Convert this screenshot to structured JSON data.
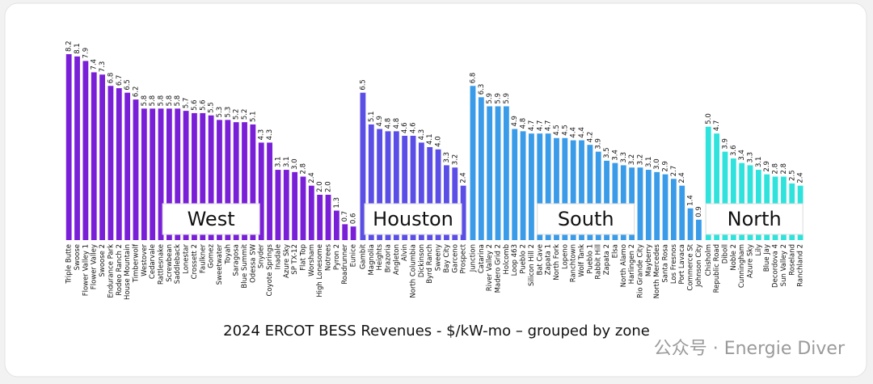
{
  "chart_data": {
    "type": "bar",
    "title": "2024 ERCOT BESS Revenues - $/kW-mo – grouped by zone",
    "watermark": "公众号 · Energie Diver",
    "series": [
      {
        "name": "West",
        "color": "#7a1fd8",
        "categories": [
          "Triple Butte",
          "Swoose",
          "Flower Valley 1",
          "Flower Valley",
          "Swoose 2",
          "Endurance Park",
          "Rodeo Ranch 2",
          "House Mountain",
          "Timberwolf",
          "Westover",
          "Cedarvale",
          "Rattlesnake",
          "Screwbean",
          "Saddleback",
          "Lonestar",
          "Crossett 2",
          "Faulkner",
          "Gomez",
          "Sweetwater",
          "Toyah",
          "Saragosa",
          "Blue Summit",
          "Odessa SW",
          "Snyder",
          "Coyote Springs",
          "Inadale",
          "Azure Sky",
          "SP TX-12",
          "Flat Top",
          "Worsham",
          "High Lonesome",
          "Notrees",
          "Pyron 2",
          "Roadrunner",
          "Eunice"
        ],
        "values": [
          8.2,
          8.1,
          7.9,
          7.4,
          7.3,
          6.8,
          6.7,
          6.5,
          6.2,
          5.8,
          5.8,
          5.8,
          5.8,
          5.8,
          5.7,
          5.6,
          5.6,
          5.5,
          5.3,
          5.3,
          5.2,
          5.2,
          5.1,
          4.3,
          4.3,
          3.1,
          3.1,
          3.0,
          2.8,
          2.4,
          2.0,
          2.0,
          1.3,
          0.7,
          0.6
        ],
        "value_labels": [
          "8.2",
          "8.1",
          "7.9",
          "7.4",
          "7.3",
          "6.8",
          "6.7",
          "6.5",
          "6.2",
          "5.8",
          "5.8",
          "5.8",
          "5.8",
          "5.8",
          "5.7",
          "5.6",
          "5.6",
          "5.5",
          "5.3",
          "5.3",
          "5.2",
          "5.2",
          "5.1",
          "4.3",
          "4.3",
          "3.1",
          "3.1",
          "3.0",
          "2.8",
          "2.4",
          "2.0",
          "2.0",
          "1.3",
          "0.7",
          "0.6"
        ]
      },
      {
        "name": "Houston",
        "color": "#5a4ee6",
        "categories": [
          "Gambit",
          "Magnolia",
          "Heights",
          "Brazoria",
          "Angleton",
          "Alvin",
          "North Columbia",
          "Dickinson",
          "Byrd Ranch",
          "Sweeny",
          "Bay City",
          "Garceno",
          "Prospect"
        ],
        "values": [
          6.5,
          5.1,
          4.9,
          4.8,
          4.8,
          4.6,
          4.6,
          4.3,
          4.1,
          4.0,
          3.3,
          3.2,
          2.4
        ],
        "value_labels": [
          "6.5",
          "5.1",
          "4.9",
          "4.8",
          "4.8",
          "4.6",
          "4.6",
          "4.3",
          "4.1",
          "4.0",
          "3.3",
          "3.2",
          "2.4"
        ]
      },
      {
        "name": "South",
        "color": "#3a9be8",
        "categories": [
          "Junction",
          "Catarina",
          "River Valley 2",
          "Madero Grid 2",
          "Holcomb",
          "Loop 463",
          "Pueblo 2",
          "Silicon Hill 2",
          "Bat Cave",
          "Zapata 1",
          "North Fork",
          "Lopeno",
          "Ranchtown",
          "Wolf Tank",
          "Pueblo 1",
          "Rabbit Hill",
          "Zapata 2",
          "Elsa",
          "North Alamo",
          "Harlingen 2",
          "Rio Grande City",
          "Mayberry",
          "North Mercedes",
          "Santa Rosa",
          "Los Fresnos",
          "Port Lavaca",
          "Commerce St",
          "Johnson City"
        ],
        "values": [
          6.8,
          6.3,
          5.9,
          5.9,
          5.9,
          4.9,
          4.8,
          4.7,
          4.7,
          4.7,
          4.5,
          4.5,
          4.4,
          4.4,
          4.2,
          3.9,
          3.5,
          3.4,
          3.3,
          3.2,
          3.2,
          3.1,
          3.0,
          2.9,
          2.7,
          2.4,
          1.4,
          0.9
        ],
        "value_labels": [
          "6.8",
          "6.3",
          "5.9",
          "5.9",
          "5.9",
          "4.9",
          "4.8",
          "4.7",
          "4.7",
          "4.7",
          "4.5",
          "4.5",
          "4.4",
          "4.4",
          "4.2",
          "3.9",
          "3.5",
          "3.4",
          "3.3",
          "3.2",
          "3.2",
          "3.1",
          "3.0",
          "2.9",
          "2.7",
          "2.4",
          "1.4",
          "0.9"
        ]
      },
      {
        "name": "North",
        "color": "#2fe3dc",
        "categories": [
          "Chisholm",
          "Republic Road",
          "Diboll",
          "Noble 2",
          "Cunningham",
          "Azure Sky",
          "Lily",
          "Blue Jay",
          "Decordova 4",
          "Sun Valley 2",
          "Roseland",
          "Ranchland 2"
        ],
        "values": [
          5.0,
          4.7,
          3.9,
          3.6,
          3.4,
          3.3,
          3.1,
          2.9,
          2.8,
          2.8,
          2.5,
          2.4
        ],
        "value_labels": [
          "5.0",
          "4.7",
          "3.9",
          "3.6",
          "3.4",
          "3.3",
          "3.1",
          "2.9",
          "2.8",
          "2.8",
          "2.5",
          "2.4"
        ]
      }
    ]
  }
}
